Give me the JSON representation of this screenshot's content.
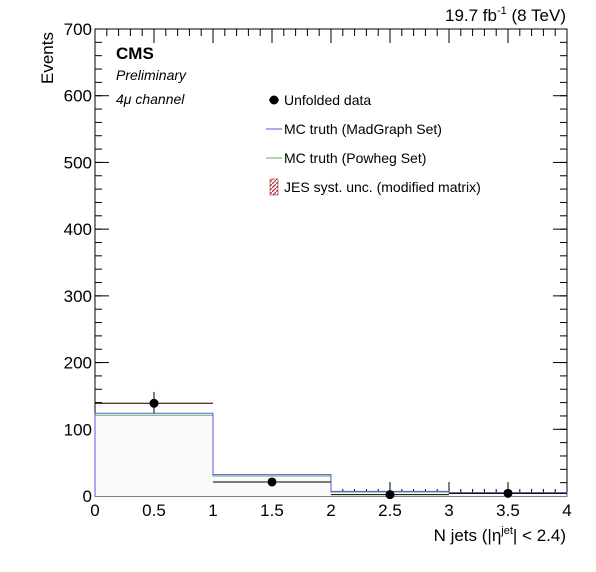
{
  "chart_data": {
    "type": "histogram",
    "header_right": {
      "main": "19.7 fb",
      "sup": "-1",
      "tail": " (8 TeV)"
    },
    "labels": {
      "experiment": "CMS",
      "status": "Preliminary",
      "channel": "4μ channel"
    },
    "xlabel": {
      "pre": "N jets (|η",
      "sup": "jet",
      "post": "| < 2.4)"
    },
    "ylabel": "Events",
    "xlim": [
      0,
      4
    ],
    "ylim": [
      0,
      700
    ],
    "x_ticks": [
      0,
      0.5,
      1,
      1.5,
      2,
      2.5,
      3,
      3.5,
      4
    ],
    "x_tick_labels": [
      "0",
      "0.5",
      "1",
      "1.5",
      "2",
      "2.5",
      "3",
      "3.5",
      "4"
    ],
    "y_ticks": [
      0,
      100,
      200,
      300,
      400,
      500,
      600,
      700
    ],
    "y_tick_labels": [
      "0",
      "100",
      "200",
      "300",
      "400",
      "500",
      "600",
      "700"
    ],
    "bin_edges": [
      0,
      1,
      2,
      3,
      4
    ],
    "legend": [
      {
        "key": "data",
        "label": "Unfolded data",
        "style": "marker",
        "color": "#000000"
      },
      {
        "key": "madgraph",
        "label": "MC truth (MadGraph Set)",
        "style": "line",
        "color": "#5a5ad8"
      },
      {
        "key": "powheg",
        "label": "MC truth (Powheg Set)",
        "style": "line",
        "color": "#5ab45a"
      },
      {
        "key": "jes",
        "label": "JES syst. unc. (modified matrix)",
        "style": "hatch",
        "color": "#b03030"
      }
    ],
    "series": [
      {
        "key": "data",
        "name": "Unfolded data",
        "x": [
          0.5,
          1.5,
          2.5,
          3.5
        ],
        "values": [
          139,
          21,
          2,
          4
        ],
        "err_low": [
          15,
          5,
          2,
          2
        ],
        "err_high": [
          17,
          6,
          2,
          3
        ],
        "color": "#000000"
      },
      {
        "key": "madgraph",
        "name": "MC truth (MadGraph Set)",
        "values": [
          124,
          32,
          7,
          5
        ],
        "color": "#5a5ad8"
      },
      {
        "key": "powheg",
        "name": "MC truth (Powheg Set)",
        "values": [
          121,
          30,
          6,
          4
        ],
        "color": "#5ab45a"
      },
      {
        "key": "data_hist",
        "values": [
          139,
          21,
          2,
          4
        ],
        "color": "#000000"
      }
    ]
  }
}
